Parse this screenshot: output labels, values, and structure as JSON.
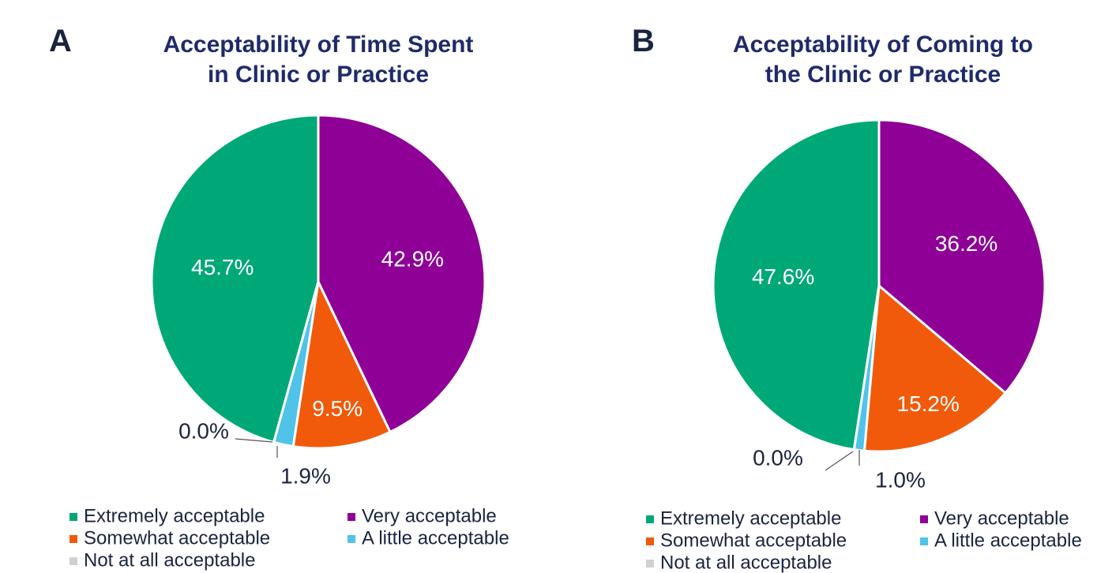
{
  "chart_data": [
    {
      "type": "pie",
      "panel": "A",
      "title": "Acceptability of Time Spent\nin Clinic or Practice",
      "categories": [
        "Extremely acceptable",
        "Very acceptable",
        "Somewhat acceptable",
        "A little acceptable",
        "Not at all acceptable"
      ],
      "values": [
        45.7,
        42.9,
        9.5,
        1.9,
        0.0
      ],
      "value_labels": [
        "45.7%",
        "42.9%",
        "9.5%",
        "1.9%",
        "0.0%"
      ],
      "colors": [
        "#00a878",
        "#8e0096",
        "#f05a0a",
        "#4fc3e8",
        "#d0d0d0"
      ]
    },
    {
      "type": "pie",
      "panel": "B",
      "title": "Acceptability of Coming to\nthe Clinic or Practice",
      "categories": [
        "Extremely acceptable",
        "Very acceptable",
        "Somewhat acceptable",
        "A little acceptable",
        "Not at all acceptable"
      ],
      "values": [
        47.6,
        36.2,
        15.2,
        1.0,
        0.0
      ],
      "value_labels": [
        "47.6%",
        "36.2%",
        "15.2%",
        "1.0%",
        "0.0%"
      ],
      "colors": [
        "#00a878",
        "#8e0096",
        "#f05a0a",
        "#4fc3e8",
        "#d0d0d0"
      ]
    }
  ]
}
